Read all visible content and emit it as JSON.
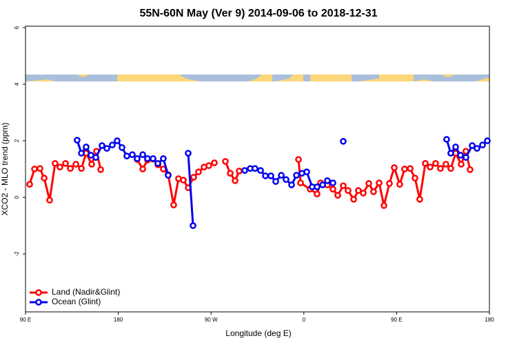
{
  "chart_data": {
    "type": "line",
    "title": "55N-60N May (Ver 9)   2014-09-06 to 2018-12-31",
    "xlabel": "Longitude (deg E)",
    "ylabel": "XCO2 - MLO trend (ppm)",
    "xlim": [
      90,
      540
    ],
    "ylim": [
      -4.05,
      6.05
    ],
    "xticks": [
      {
        "value": 90,
        "label": "90 E"
      },
      180,
      {
        "value": 270,
        "label": "90 W"
      },
      {
        "value": 360,
        "label": "0"
      },
      {
        "value": 450,
        "label": "90 E"
      },
      {
        "value": 540,
        "label": "180"
      }
    ],
    "yticks": [
      -2,
      0,
      2,
      4,
      6
    ],
    "legend": "bottom-left",
    "series": [
      {
        "name": "Land (Nadir&Glint)",
        "color": "#ff0000",
        "x": [
          94.0,
          98.7,
          104.0,
          108.1,
          113.4,
          118.7,
          123.4,
          128.8,
          133.5,
          138.8,
          144.2,
          148.8,
          154.2,
          158.9,
          162.9,
          null,
          198.3,
          203.7,
          208.3,
          213.7,
          218.4,
          223.7,
          228.4,
          233.7,
          238.4,
          243.1,
          247.8,
          253.1,
          257.8,
          263.2,
          267.8,
          273.2,
          null,
          283.9,
          288.6,
          293.3,
          297.3,
          null,
          354.8,
          356.8,
          366.1,
          372.8,
          376.2,
          382.8,
          388.2,
          392.9,
          398.2,
          402.9,
          408.3,
          412.9,
          417.6,
          423.0,
          427.6,
          433.0,
          437.7,
          443.0,
          447.7,
          453.0,
          457.7,
          463.1,
          467.8,
          472.4,
          477.8,
          482.5,
          487.8,
          492.5,
          497.8,
          502.5,
          507.2,
          512.6,
          517.2,
          521.2
        ],
        "values": [
          0.46,
          1.0,
          1.02,
          0.68,
          -0.1,
          1.2,
          1.07,
          1.2,
          1.02,
          1.17,
          1.02,
          1.56,
          1.17,
          1.63,
          0.98,
          null,
          1.34,
          1.0,
          1.32,
          1.35,
          1.15,
          1.0,
          0.8,
          -0.27,
          0.66,
          0.61,
          0.34,
          0.71,
          0.9,
          1.07,
          1.12,
          1.22,
          null,
          1.27,
          0.85,
          0.59,
          0.93,
          null,
          1.34,
          0.51,
          0.29,
          0.12,
          0.51,
          0.44,
          0.29,
          0.07,
          0.41,
          0.24,
          -0.07,
          0.24,
          0.15,
          0.49,
          0.2,
          0.51,
          -0.29,
          0.49,
          1.05,
          0.46,
          1.0,
          1.02,
          0.68,
          -0.07,
          1.2,
          1.07,
          1.2,
          1.02,
          1.17,
          1.02,
          1.56,
          1.17,
          1.63,
          0.98
        ]
      },
      {
        "name": "Ocean (Glint)",
        "color": "#0000ee",
        "x": [
          140.1,
          144.2,
          148.8,
          153.5,
          158.2,
          164.2,
          168.9,
          174.2,
          178.9,
          183.6,
          188.3,
          193.6,
          198.3,
          203.7,
          208.3,
          213.7,
          218.4,
          223.7,
          228.4,
          null,
          247.8,
          252.5,
          null,
          302.6,
          308.0,
          312.6,
          318.0,
          322.7,
          328.0,
          332.7,
          338.1,
          342.7,
          348.1,
          352.8,
          358.1,
          362.8,
          368.1,
          372.8,
          378.2,
          382.8,
          388.2,
          null,
          398.2,
          null,
          498.5,
          502.5,
          507.2,
          511.9,
          517.2,
          523.3,
          527.9,
          533.3,
          538.0
        ],
        "values": [
          2.02,
          1.56,
          1.78,
          1.49,
          1.41,
          1.83,
          1.73,
          1.85,
          2.0,
          1.76,
          1.46,
          1.51,
          1.37,
          1.51,
          1.37,
          1.37,
          1.2,
          1.37,
          0.78,
          null,
          1.56,
          -1.0,
          null,
          0.95,
          1.02,
          1.02,
          0.95,
          0.76,
          0.76,
          0.56,
          0.78,
          0.63,
          0.44,
          0.78,
          0.85,
          0.9,
          0.37,
          0.37,
          0.44,
          0.59,
          0.51,
          null,
          1.98,
          null,
          2.05,
          1.56,
          1.78,
          1.49,
          1.41,
          1.83,
          1.73,
          1.85,
          2.0
        ]
      }
    ]
  }
}
